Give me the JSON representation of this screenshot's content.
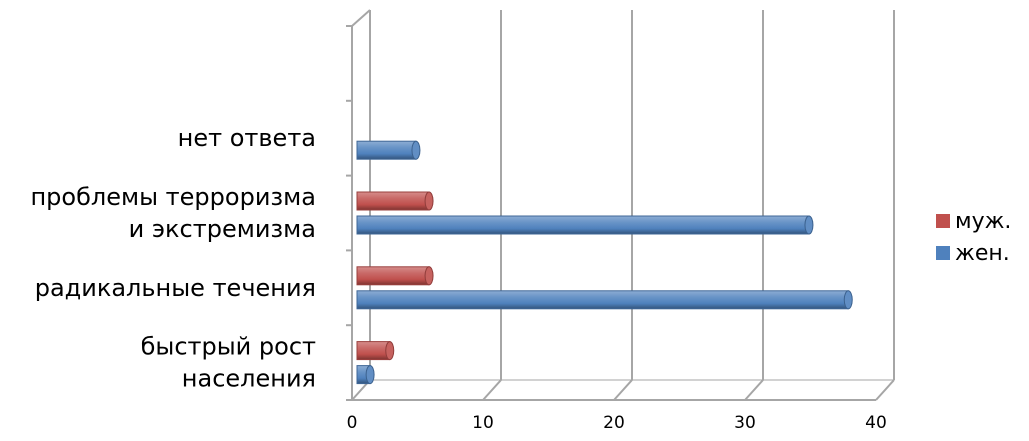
{
  "chart_data": {
    "type": "bar",
    "orientation": "horizontal",
    "style": "3d-cylinder",
    "title": "",
    "xlabel": "",
    "ylabel": "",
    "categories": [
      [
        "быстрый рост",
        "населения"
      ],
      [
        "радикальные течения"
      ],
      [
        "проблемы терроризма",
        "и экстремизма"
      ],
      [
        "нет ответа"
      ],
      [
        ""
      ]
    ],
    "series": [
      {
        "name": "жен.",
        "color": "#4f81bd",
        "values": [
          1,
          37.5,
          34.5,
          4.5,
          null
        ]
      },
      {
        "name": "муж.",
        "color": "#c0504d",
        "values": [
          2.5,
          5.5,
          5.5,
          null,
          null
        ]
      }
    ],
    "xlim": [
      0,
      40
    ],
    "xticks": [
      "0",
      "10",
      "20",
      "30",
      "40"
    ],
    "grid": true,
    "legend": {
      "position": "right",
      "order": [
        "муж.",
        "жен."
      ]
    }
  }
}
